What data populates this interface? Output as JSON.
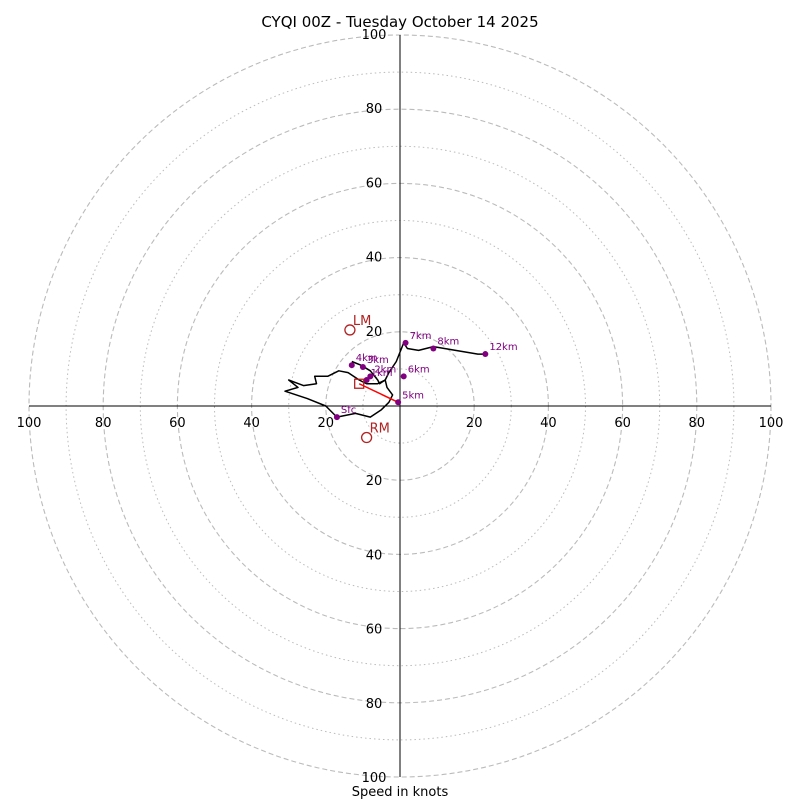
{
  "chart_data": {
    "type": "hodograph",
    "title": "CYQI 00Z - Tuesday October 14 2025",
    "xlabel": "Speed in knots",
    "range": [
      0,
      100
    ],
    "ring_major": [
      20,
      40,
      60,
      80,
      100
    ],
    "ring_minor": [
      10,
      30,
      50,
      70,
      90
    ],
    "tick_labels": [
      {
        "value": 20,
        "text": "20"
      },
      {
        "value": 40,
        "text": "40"
      },
      {
        "value": 60,
        "text": "60"
      },
      {
        "value": 80,
        "text": "80"
      },
      {
        "value": 100,
        "text": "100"
      }
    ],
    "hodograph_trace": [
      [
        -17,
        -3
      ],
      [
        -12,
        -2
      ],
      [
        -8,
        -3
      ],
      [
        -5,
        -1
      ],
      [
        -3,
        1
      ],
      [
        -2,
        3
      ],
      [
        -3.5,
        5
      ],
      [
        -4,
        7
      ],
      [
        -6,
        6
      ],
      [
        -9,
        6
      ],
      [
        -11,
        7
      ],
      [
        -14,
        9
      ],
      [
        -16.5,
        9.5
      ],
      [
        -19.5,
        8
      ],
      [
        -23,
        8
      ],
      [
        -22.5,
        6
      ],
      [
        -26,
        5.5
      ],
      [
        -30,
        7
      ],
      [
        -27.5,
        5
      ],
      [
        -31,
        4
      ],
      [
        -25,
        2
      ],
      [
        -20,
        0
      ],
      [
        -17,
        -3
      ]
    ],
    "hodograph_trace_upper": [
      [
        -13,
        12
      ],
      [
        -10.5,
        11
      ],
      [
        -8,
        9.5
      ],
      [
        -6,
        7
      ],
      [
        -5.5,
        6
      ],
      [
        -4,
        7
      ],
      [
        -3,
        9
      ],
      [
        -1,
        12
      ],
      [
        1,
        17
      ],
      [
        2,
        15.5
      ],
      [
        5,
        15
      ],
      [
        9,
        16
      ],
      [
        15,
        15
      ],
      [
        21,
        14
      ],
      [
        23,
        14
      ]
    ],
    "levels": [
      {
        "label": "Sfc",
        "u": -17,
        "v": -3
      },
      {
        "label": "1km",
        "u": -9,
        "v": 7
      },
      {
        "label": "2km",
        "u": -8,
        "v": 8
      },
      {
        "label": "3km",
        "u": -10,
        "v": 10.5
      },
      {
        "label": "4km",
        "u": -13,
        "v": 11
      },
      {
        "label": "5km",
        "u": -0.5,
        "v": 1
      },
      {
        "label": "6km",
        "u": 1,
        "v": 8
      },
      {
        "label": "7km",
        "u": 1.5,
        "v": 17
      },
      {
        "label": "8km",
        "u": 9,
        "v": 15.5
      },
      {
        "label": "12km",
        "u": 23,
        "v": 14
      }
    ],
    "bunkers": {
      "left_mover": {
        "label": "LM",
        "u": -13.5,
        "v": 20.5
      },
      "right_mover": {
        "label": "RM",
        "u": -9,
        "v": -8.5
      },
      "mean_wind": {
        "u": -11,
        "v": 6
      }
    },
    "shear_vector": {
      "from_u": -11,
      "from_v": 6,
      "to_u": -0.5,
      "to_v": 1
    },
    "colors": {
      "trace": "#000000",
      "level_marker": "#800080",
      "storm_motion": "#b22222",
      "shear": "#ff0000",
      "grid": "#bbbbbb"
    }
  }
}
